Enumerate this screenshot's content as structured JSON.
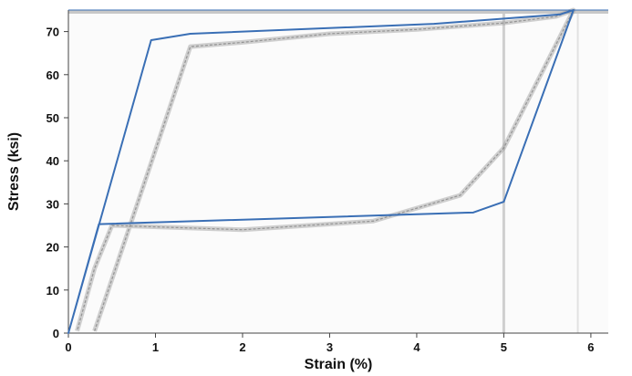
{
  "chart_data": {
    "type": "line",
    "title": "",
    "xlabel": "Strain (%)",
    "ylabel": "Stress (ksi)",
    "xlim": [
      0,
      6.2
    ],
    "ylim": [
      0,
      75
    ],
    "x_ticks": [
      0,
      1,
      2,
      3,
      4,
      5,
      6
    ],
    "y_ticks": [
      0,
      10,
      20,
      30,
      40,
      50,
      60,
      70
    ],
    "grid": false,
    "legend": "none",
    "background": "scanned experimental stress-strain curve (gray) with model overlay (blue)",
    "series": [
      {
        "color": "#3a6fb5",
        "points": [
          {
            "x": 0,
            "y": 0
          },
          {
            "x": 0.95,
            "y": 68
          },
          {
            "x": 1.4,
            "y": 69.5
          },
          {
            "x": 4.2,
            "y": 71.8
          },
          {
            "x": 5.65,
            "y": 74
          },
          {
            "x": 5.8,
            "y": 75
          },
          {
            "x": 5.0,
            "y": 30.5
          },
          {
            "x": 4.65,
            "y": 28
          },
          {
            "x": 0.35,
            "y": 25.3
          },
          {
            "x": 0,
            "y": 0
          }
        ]
      }
    ],
    "background_curve": {
      "color": "#9a9a9a",
      "points": [
        {
          "x": 0.3,
          "y": 0.5
        },
        {
          "x": 1.4,
          "y": 66.5
        },
        {
          "x": 2.0,
          "y": 67.5
        },
        {
          "x": 3.0,
          "y": 69.5
        },
        {
          "x": 4.0,
          "y": 70.5
        },
        {
          "x": 5.0,
          "y": 72.0
        },
        {
          "x": 5.6,
          "y": 73.5
        },
        {
          "x": 5.8,
          "y": 75
        },
        {
          "x": 5.0,
          "y": 43
        },
        {
          "x": 4.5,
          "y": 32
        },
        {
          "x": 3.5,
          "y": 26
        },
        {
          "x": 2.0,
          "y": 24
        },
        {
          "x": 0.5,
          "y": 25
        },
        {
          "x": 0.3,
          "y": 15
        },
        {
          "x": 0.1,
          "y": 0.5
        }
      ]
    }
  }
}
